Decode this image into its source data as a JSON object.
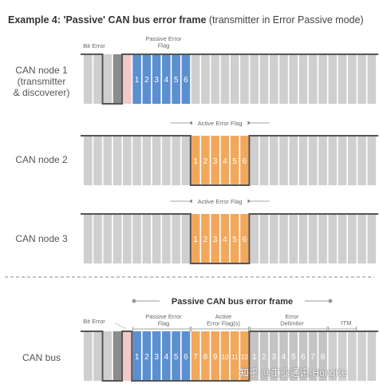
{
  "title": {
    "bold": "Example 4: 'Passive' CAN bus error frame",
    "rest": " (transmitter in Error Passive mode)"
  },
  "nodes": [
    {
      "label": "CAN node 1\n(transmitter\n& discoverer)"
    },
    {
      "label": "CAN node 2"
    },
    {
      "label": "CAN node 3"
    },
    {
      "label": "CAN bus"
    }
  ],
  "annotations": {
    "bit_error": "Bit Error",
    "passive_error_flag": "Passive Error\nFlag",
    "active_error_flag": "Active Error Flag",
    "bus_section_title": "Passive CAN bus error frame",
    "active_error_flags": "Active\nError Flag(s)",
    "error_delimiter": "Error\nDelimiter",
    "itm": "ITM"
  },
  "rows": [
    {
      "numbers": [
        "1",
        "2",
        "3",
        "4",
        "5",
        "6"
      ]
    },
    {
      "numbers": [
        "1",
        "2",
        "3",
        "4",
        "5",
        "6"
      ]
    },
    {
      "numbers": [
        "1",
        "2",
        "3",
        "4",
        "5",
        "6"
      ]
    },
    {
      "passive_numbers": [
        "1",
        "2",
        "3",
        "4",
        "5",
        "6"
      ],
      "active_numbers": [
        "7",
        "8",
        "9",
        "10",
        "11",
        "12"
      ],
      "delimiter_numbers": [
        "1",
        "2",
        "3",
        "4",
        "5",
        "6",
        "7",
        "8"
      ]
    }
  ],
  "colors": {
    "passive_blue": "#5b8fd0",
    "active_orange": "#f2a85c",
    "bit_pink": "#f2c9c9",
    "bit_dark": "#8c8c8c",
    "bit_gray": "#cfcfcf",
    "signal_line": "#555555",
    "divider": "#8a8a8a"
  },
  "watermark": "知乎 @工业通讯-HongKe"
}
